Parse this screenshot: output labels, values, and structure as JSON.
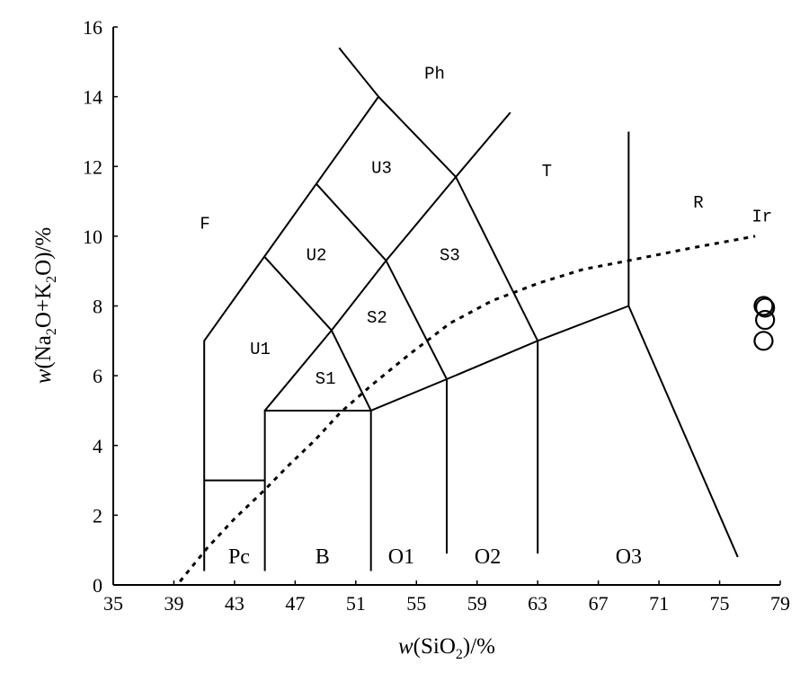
{
  "chart_data": {
    "type": "scatter",
    "title": "",
    "xlabel": {
      "prefix": "w",
      "open": "(SiO",
      "sub": "2",
      "close": ")/%"
    },
    "ylabel": {
      "prefix": "w",
      "p1": "(Na",
      "s1": "2",
      "p2": "O+K",
      "s2": "2",
      "p3": "O)/%"
    },
    "xlim": [
      35,
      79
    ],
    "ylim": [
      0,
      16
    ],
    "xticks": [
      35,
      39,
      43,
      47,
      51,
      55,
      59,
      63,
      67,
      71,
      75,
      79
    ],
    "yticks": [
      0,
      2,
      4,
      6,
      8,
      10,
      12,
      14,
      16
    ],
    "grid": false,
    "points": [
      {
        "x": 77.9,
        "y": 8.0
      },
      {
        "x": 78.0,
        "y": 7.95
      },
      {
        "x": 78.0,
        "y": 7.6
      },
      {
        "x": 77.9,
        "y": 7.0
      }
    ],
    "field_boundaries": [
      [
        [
          41,
          0.4
        ],
        [
          41,
          7
        ],
        [
          52.5,
          14
        ],
        [
          49.9,
          15.4
        ]
      ],
      [
        [
          41,
          3
        ],
        [
          45,
          3
        ]
      ],
      [
        [
          45,
          0.4
        ],
        [
          45,
          5
        ],
        [
          52,
          5
        ],
        [
          52,
          0.4
        ]
      ],
      [
        [
          45,
          5
        ],
        [
          49.4,
          7.3
        ],
        [
          53,
          9.3
        ],
        [
          57.6,
          11.7
        ],
        [
          61.2,
          13.55
        ]
      ],
      [
        [
          52,
          5
        ],
        [
          57,
          5.9
        ],
        [
          63,
          7
        ],
        [
          69,
          8
        ],
        [
          69,
          13
        ]
      ],
      [
        [
          69,
          8
        ],
        [
          76.2,
          0.8
        ]
      ],
      [
        [
          57,
          0.9
        ],
        [
          57,
          5.9
        ]
      ],
      [
        [
          63,
          0.9
        ],
        [
          63,
          7
        ]
      ],
      [
        [
          49.4,
          7.3
        ],
        [
          52,
          5
        ]
      ],
      [
        [
          53,
          9.3
        ],
        [
          57,
          5.9
        ]
      ],
      [
        [
          57.6,
          11.7
        ],
        [
          63,
          7
        ]
      ],
      [
        [
          48.4,
          11.5
        ],
        [
          53,
          9.3
        ]
      ],
      [
        [
          45,
          9.4
        ],
        [
          49.4,
          7.3
        ]
      ],
      [
        [
          52.5,
          14
        ],
        [
          57.6,
          11.7
        ]
      ]
    ],
    "irvine_line": [
      [
        39.4,
        0.1
      ],
      [
        41.2,
        1.06
      ],
      [
        43,
        1.9
      ],
      [
        45,
        2.73
      ],
      [
        46.5,
        3.4
      ],
      [
        48.3,
        4.15
      ],
      [
        50,
        4.95
      ],
      [
        52.1,
        5.75
      ],
      [
        54.5,
        6.6
      ],
      [
        57.2,
        7.5
      ],
      [
        60,
        8.15
      ],
      [
        63.1,
        8.66
      ],
      [
        66,
        9.05
      ],
      [
        69,
        9.3
      ],
      [
        73,
        9.65
      ],
      [
        77.35,
        10.0
      ]
    ],
    "field_labels": [
      {
        "text": "F",
        "x": 41.05,
        "y": 10.4,
        "style": "mono"
      },
      {
        "text": "Ph",
        "x": 56.2,
        "y": 14.7,
        "style": "mono"
      },
      {
        "text": "T",
        "x": 63.6,
        "y": 11.9,
        "style": "mono"
      },
      {
        "text": "R",
        "x": 73.6,
        "y": 11.0,
        "style": "mono"
      },
      {
        "text": "Ir",
        "x": 77.8,
        "y": 10.6,
        "style": "mono"
      },
      {
        "text": "U3",
        "x": 52.7,
        "y": 12.0,
        "style": "mono"
      },
      {
        "text": "U2",
        "x": 48.4,
        "y": 9.5,
        "style": "mono"
      },
      {
        "text": "S3",
        "x": 57.2,
        "y": 9.5,
        "style": "mono"
      },
      {
        "text": "U1",
        "x": 44.7,
        "y": 6.8,
        "style": "mono"
      },
      {
        "text": "S2",
        "x": 52.4,
        "y": 7.7,
        "style": "mono"
      },
      {
        "text": "S1",
        "x": 49.0,
        "y": 5.95,
        "style": "mono"
      },
      {
        "text": "Pc",
        "x": 43.3,
        "y": 0.8,
        "style": "serif"
      },
      {
        "text": "B",
        "x": 48.8,
        "y": 0.8,
        "style": "serif"
      },
      {
        "text": "O1",
        "x": 54.0,
        "y": 0.8,
        "style": "serif"
      },
      {
        "text": "O2",
        "x": 59.7,
        "y": 0.8,
        "style": "serif"
      },
      {
        "text": "O3",
        "x": 69.0,
        "y": 0.8,
        "style": "serif"
      }
    ]
  }
}
